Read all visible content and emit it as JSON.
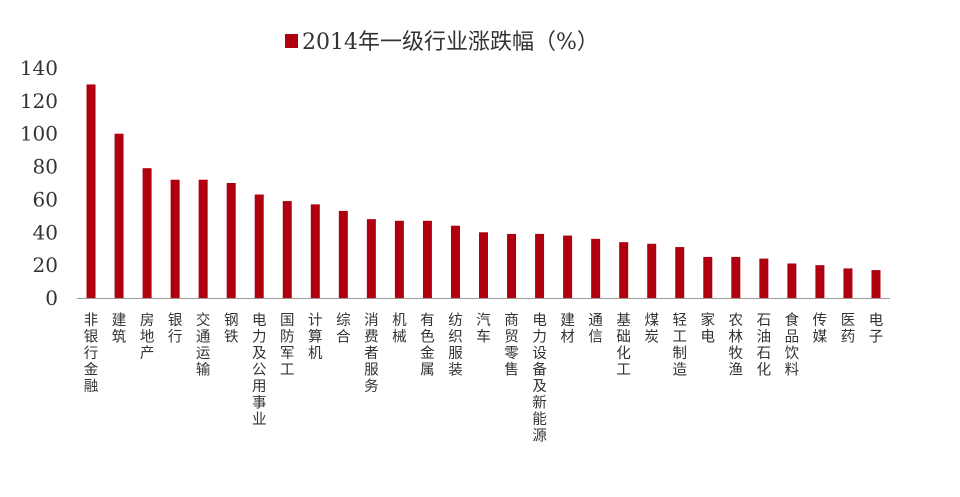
{
  "chart_data": {
    "type": "bar",
    "title": "",
    "xlabel": "",
    "ylabel": "",
    "ylim": [
      0,
      140
    ],
    "yticks": [
      0,
      20,
      40,
      60,
      80,
      100,
      120,
      140
    ],
    "grid": false,
    "legend_position": "top-center",
    "bar_color": "#B0000F",
    "series": [
      {
        "name": "2014年一级行业涨跌幅（%）",
        "values": [
          130,
          100,
          79,
          72,
          72,
          70,
          63,
          59,
          57,
          53,
          48,
          47,
          47,
          44,
          40,
          39,
          39,
          38,
          36,
          34,
          33,
          31,
          25,
          25,
          24,
          21,
          20,
          18,
          17
        ]
      }
    ],
    "categories": [
      "非银行金融",
      "建筑",
      "房地产",
      "银行",
      "交通运输",
      "钢铁",
      "电力及公用事业",
      "国防军工",
      "计算机",
      "综合",
      "消费者服务",
      "机械",
      "有色金属",
      "纺织服装",
      "汽车",
      "商贸零售",
      "电力设备及新能源",
      "建材",
      "通信",
      "基础化工",
      "煤炭",
      "轻工制造",
      "家电",
      "农林牧渔",
      "石油石化",
      "食品饮料",
      "传媒",
      "医药",
      "电子"
    ]
  }
}
